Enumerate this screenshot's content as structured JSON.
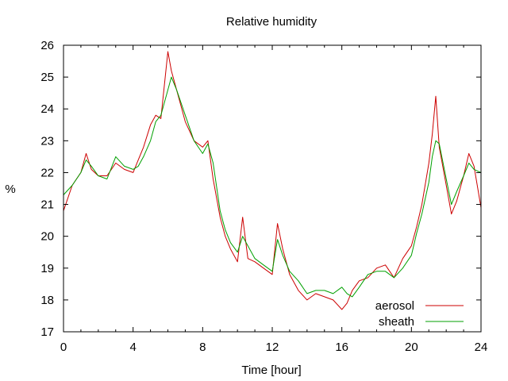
{
  "chart_data": {
    "type": "line",
    "title": "Relative humidity",
    "xlabel": "Time [hour]",
    "ylabel": "%",
    "xlim": [
      0,
      24
    ],
    "ylim": [
      17,
      26
    ],
    "xticks": [
      0,
      4,
      8,
      12,
      16,
      20,
      24
    ],
    "yticks": [
      17,
      18,
      19,
      20,
      21,
      22,
      23,
      24,
      25,
      26
    ],
    "grid": false,
    "legend_position": "bottom-right",
    "series": [
      {
        "name": "aerosol",
        "color": "#cc0000",
        "x": [
          0,
          0.5,
          1,
          1.3,
          1.6,
          2,
          2.5,
          3,
          3.5,
          4,
          4.3,
          4.6,
          5,
          5.3,
          5.6,
          6,
          6.2,
          6.5,
          7,
          7.5,
          8,
          8.3,
          8.6,
          9,
          9.3,
          9.6,
          10,
          10.3,
          10.6,
          11,
          11.5,
          12,
          12.3,
          12.6,
          13,
          13.5,
          14,
          14.5,
          15,
          15.5,
          16,
          16.3,
          16.6,
          17,
          17.5,
          18,
          18.5,
          19,
          19.5,
          20,
          20.3,
          20.6,
          21,
          21.2,
          21.4,
          21.6,
          22,
          22.3,
          22.6,
          23,
          23.3,
          23.6,
          24
        ],
        "y": [
          20.8,
          21.6,
          22.0,
          22.6,
          22.1,
          21.9,
          21.9,
          22.3,
          22.1,
          22.0,
          22.4,
          22.8,
          23.5,
          23.8,
          23.7,
          25.8,
          25.2,
          24.6,
          23.6,
          23.0,
          22.8,
          23.0,
          21.8,
          20.6,
          20.0,
          19.6,
          19.2,
          20.6,
          19.3,
          19.2,
          19.0,
          18.8,
          20.4,
          19.6,
          18.8,
          18.3,
          18.0,
          18.2,
          18.1,
          18.0,
          17.7,
          17.9,
          18.3,
          18.6,
          18.7,
          19.0,
          19.1,
          18.7,
          19.3,
          19.7,
          20.3,
          21.0,
          22.3,
          23.2,
          24.4,
          22.8,
          21.6,
          20.7,
          21.1,
          21.9,
          22.6,
          22.2,
          20.9
        ]
      },
      {
        "name": "sheath",
        "color": "#00a000",
        "x": [
          0,
          0.5,
          1,
          1.3,
          1.6,
          2,
          2.5,
          3,
          3.5,
          4,
          4.3,
          4.6,
          5,
          5.3,
          5.6,
          6,
          6.2,
          6.5,
          7,
          7.5,
          8,
          8.3,
          8.6,
          9,
          9.3,
          9.6,
          10,
          10.3,
          10.6,
          11,
          11.5,
          12,
          12.3,
          12.6,
          13,
          13.5,
          14,
          14.5,
          15,
          15.5,
          16,
          16.3,
          16.6,
          17,
          17.5,
          18,
          18.5,
          19,
          19.5,
          20,
          20.3,
          20.6,
          21,
          21.2,
          21.4,
          21.6,
          22,
          22.3,
          22.6,
          23,
          23.3,
          23.6,
          24
        ],
        "y": [
          21.3,
          21.6,
          22.0,
          22.4,
          22.2,
          21.9,
          21.8,
          22.5,
          22.2,
          22.1,
          22.2,
          22.5,
          23.0,
          23.6,
          23.8,
          24.6,
          25.0,
          24.6,
          23.8,
          23.0,
          22.6,
          22.9,
          22.3,
          20.8,
          20.2,
          19.8,
          19.5,
          20.0,
          19.7,
          19.3,
          19.1,
          18.9,
          19.9,
          19.4,
          18.9,
          18.6,
          18.2,
          18.3,
          18.3,
          18.2,
          18.4,
          18.2,
          18.1,
          18.4,
          18.8,
          18.9,
          18.9,
          18.7,
          19.0,
          19.4,
          20.1,
          20.7,
          21.7,
          22.5,
          23.0,
          22.9,
          21.8,
          21.0,
          21.4,
          21.9,
          22.3,
          22.1,
          22.0
        ]
      }
    ]
  }
}
